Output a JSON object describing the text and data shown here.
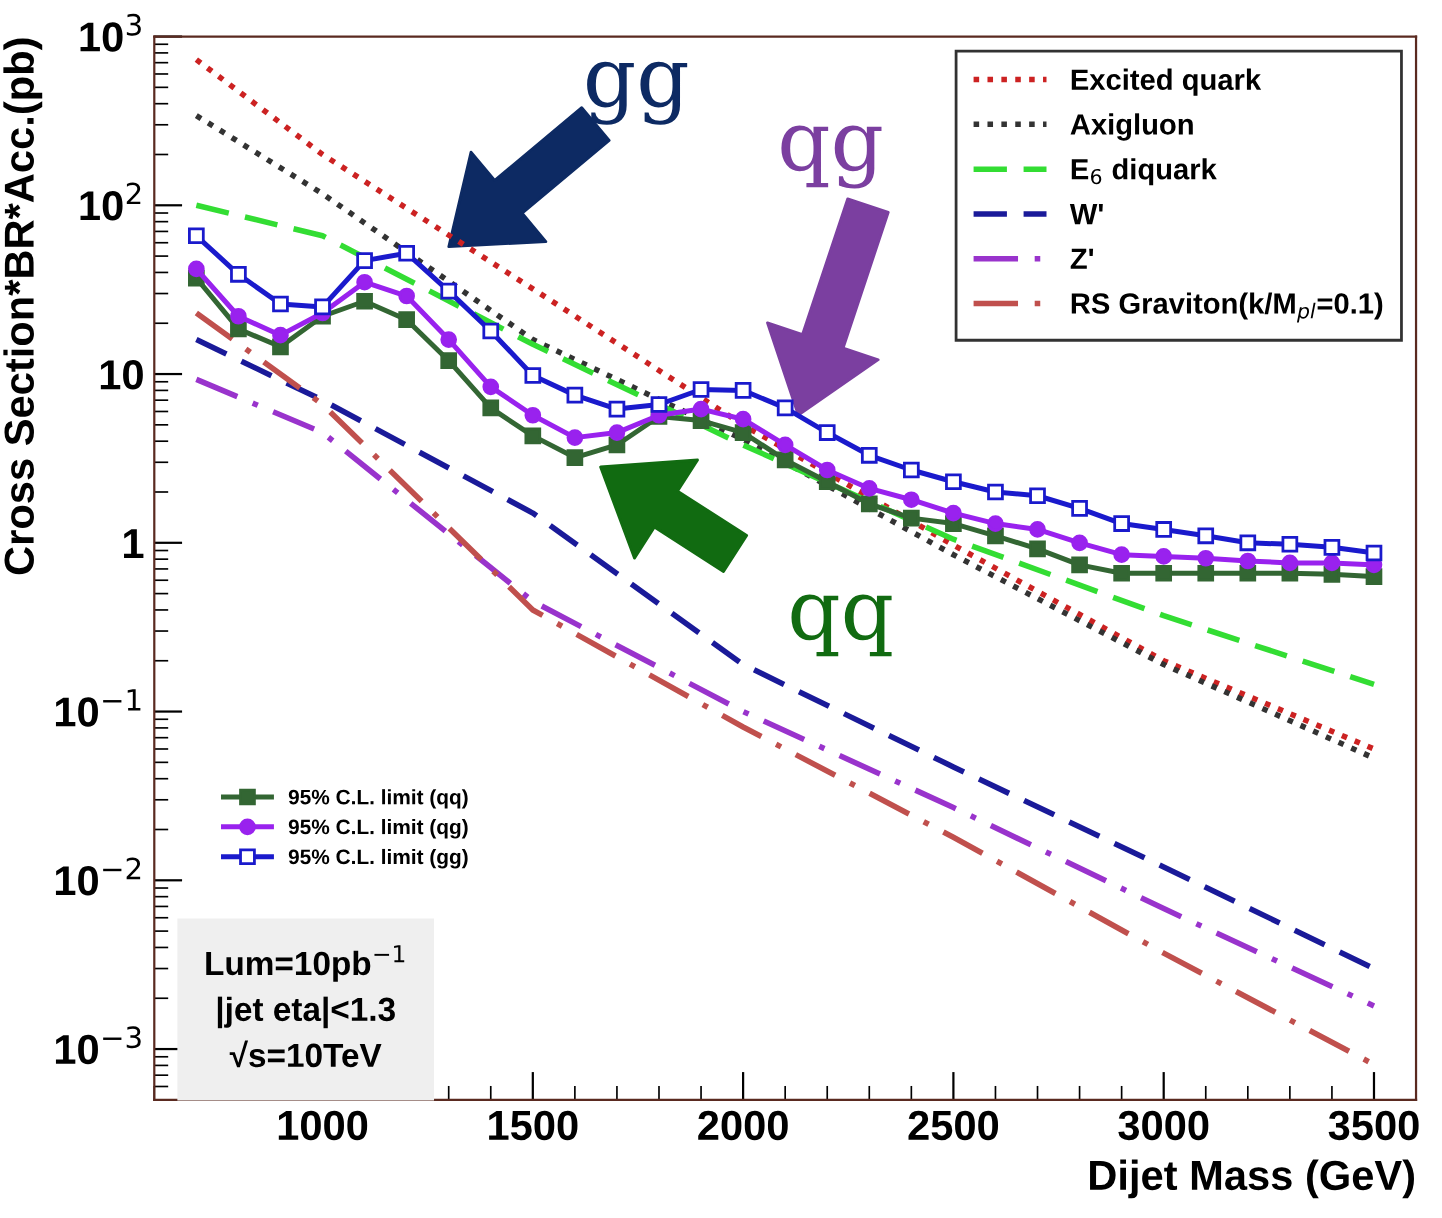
{
  "chart_data": {
    "type": "line",
    "xlabel": "Dijet Mass (GeV)",
    "ylabel": "Cross Section*BR*Acc.(pb)",
    "log": "y",
    "xlim": [
      600,
      3600
    ],
    "ylim": [
      0.0005,
      1000
    ],
    "xticks": [
      1000,
      1500,
      2000,
      2500,
      3000,
      3500
    ],
    "yticks": [
      {
        "value": 0.001,
        "label": "10$^{−3}$"
      },
      {
        "value": 0.01,
        "label": "10$^{−2}$"
      },
      {
        "value": 0.1,
        "label": "10$^{−1}$"
      },
      1,
      10,
      {
        "value": 100,
        "label": "10$^{2}$"
      },
      {
        "value": 1000,
        "label": "10$^{3}$"
      }
    ],
    "grid": false,
    "legend": "top right",
    "series": [
      {
        "name": "Excited quark",
        "color": "#cc2222",
        "line_style": "dotted",
        "marker": "none",
        "x": [
          700,
          1000,
          1500,
          2000,
          2500,
          3000,
          3500
        ],
        "values": [
          730,
          200,
          32,
          5,
          0.97,
          0.2,
          0.06
        ]
      },
      {
        "name": "Axigluon",
        "color": "#333333",
        "line_style": "dotted",
        "marker": "none",
        "x": [
          700,
          1000,
          1500,
          2000,
          2500,
          3000,
          3500
        ],
        "values": [
          340,
          117,
          16,
          4.1,
          0.85,
          0.19,
          0.053
        ]
      },
      {
        "name": "E$_{6}$ diquark",
        "color": "#33dd33",
        "line_style": "dashed",
        "marker": "none",
        "x": [
          700,
          1000,
          1500,
          2000,
          2500,
          3000,
          3500
        ],
        "values": [
          100,
          66,
          15,
          3.8,
          1.05,
          0.37,
          0.145
        ]
      },
      {
        "name": "W'",
        "color": "#1a1a99",
        "line_style": "dashed",
        "marker": "none",
        "x": [
          700,
          1000,
          1500,
          2000,
          2500,
          3000,
          3500
        ],
        "values": [
          16,
          7,
          1.5,
          0.19,
          0.047,
          0.012,
          0.003
        ]
      },
      {
        "name": "Z'",
        "color": "#9933cc",
        "line_style": "dashdot",
        "marker": "none",
        "x": [
          700,
          1000,
          1500,
          2000,
          2500,
          3000,
          3500
        ],
        "values": [
          9.3,
          4.5,
          0.45,
          0.1,
          0.027,
          0.0068,
          0.0018
        ]
      },
      {
        "name": "RS Graviton(k/M$_{pl}$=0.1)",
        "color": "#c0504d",
        "line_style": "dashdot",
        "marker": "none",
        "x": [
          700,
          1000,
          1500,
          2000,
          2500,
          3000,
          3500
        ],
        "values": [
          23,
          6.6,
          0.4,
          0.081,
          0.018,
          0.0037,
          0.00081
        ]
      },
      {
        "name": "95% C.L. limit (qq)",
        "color": "#336633",
        "line_style": "solid",
        "marker": "square",
        "x": [
          700,
          800,
          900,
          1000,
          1100,
          1200,
          1300,
          1400,
          1500,
          1600,
          1700,
          1800,
          1900,
          2000,
          2100,
          2200,
          2300,
          2400,
          2500,
          2600,
          2700,
          2800,
          2900,
          3000,
          3100,
          3200,
          3300,
          3400,
          3500
        ],
        "values": [
          37,
          18.5,
          14.5,
          22,
          27,
          21,
          12,
          6.3,
          4.3,
          3.2,
          3.8,
          5.6,
          5.3,
          4.5,
          3.1,
          2.3,
          1.7,
          1.4,
          1.3,
          1.1,
          0.92,
          0.74,
          0.66,
          0.66,
          0.66,
          0.66,
          0.66,
          0.65,
          0.63
        ]
      },
      {
        "name": "95% C.L. limit (qg)",
        "color": "#9922ee",
        "line_style": "solid",
        "marker": "circle",
        "x": [
          700,
          800,
          900,
          1000,
          1100,
          1200,
          1300,
          1400,
          1500,
          1600,
          1700,
          1800,
          1900,
          2000,
          2100,
          2200,
          2300,
          2400,
          2500,
          2600,
          2700,
          2800,
          2900,
          3000,
          3100,
          3200,
          3300,
          3400,
          3500
        ],
        "values": [
          42,
          22,
          17,
          23,
          35,
          29,
          16,
          8.4,
          5.7,
          4.2,
          4.5,
          5.7,
          6.2,
          5.4,
          3.8,
          2.7,
          2.1,
          1.8,
          1.5,
          1.3,
          1.2,
          1.0,
          0.85,
          0.83,
          0.81,
          0.78,
          0.76,
          0.76,
          0.74
        ]
      },
      {
        "name": "95% C.L. limit (gg)",
        "color": "#1a1acc",
        "line_style": "solid",
        "marker": "square",
        "x": [
          700,
          800,
          900,
          1000,
          1100,
          1200,
          1300,
          1400,
          1500,
          1600,
          1700,
          1800,
          1900,
          2000,
          2100,
          2200,
          2300,
          2400,
          2500,
          2600,
          2700,
          2800,
          2900,
          3000,
          3100,
          3200,
          3300,
          3400,
          3500
        ],
        "values": [
          66,
          39,
          26,
          25,
          47,
          52,
          31,
          18,
          9.8,
          7.5,
          6.2,
          6.6,
          8.1,
          8.0,
          6.3,
          4.5,
          3.3,
          2.7,
          2.3,
          2.0,
          1.9,
          1.6,
          1.3,
          1.2,
          1.1,
          1.0,
          0.98,
          0.94,
          0.87
        ]
      }
    ],
    "annotations": [
      "gg",
      "qg",
      "qq",
      "Lum=10pb$^{−1}$",
      "|jet eta|<1.3",
      "√s=10TeV"
    ]
  }
}
